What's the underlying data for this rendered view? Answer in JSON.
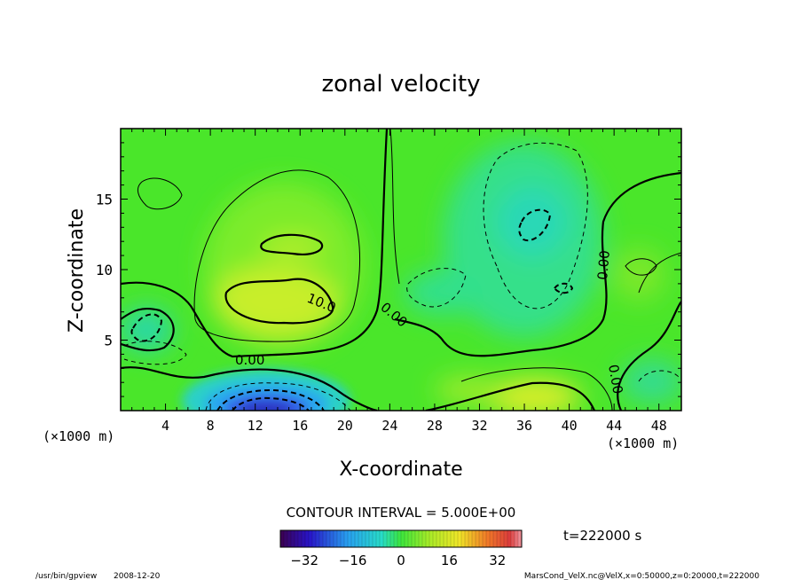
{
  "chart_data": {
    "type": "heatmap",
    "title": "zonal velocity",
    "xlabel": "X-coordinate",
    "ylabel": "Z-coordinate",
    "x_unit_left": "(×1000 m)",
    "x_unit_right": "(×1000 m)",
    "xlim": [
      0,
      50
    ],
    "ylim": [
      0,
      20
    ],
    "x_ticks": [
      4,
      8,
      12,
      16,
      20,
      24,
      28,
      32,
      36,
      40,
      44,
      48
    ],
    "y_ticks": [
      5,
      10,
      15
    ],
    "contour_interval_label": "CONTOUR INTERVAL = 5.000E+00",
    "contour_labels": [
      "0.00",
      "10.0",
      "0.00",
      "0.00",
      "0.00"
    ],
    "colorbar": {
      "range": [
        -40,
        40
      ],
      "ticks": [
        -32,
        -16,
        0,
        16,
        32
      ],
      "tick_labels": [
        "−32",
        "−16",
        "0",
        "16",
        "32"
      ]
    },
    "time_label": "t=222000 s",
    "grid": false
  },
  "footer": {
    "program": "/usr/bin/gpview",
    "date": "2008-12-20",
    "source": "MarsCond_VelX.nc@VelX,x=0:50000,z=0:20000,t=222000"
  },
  "colors": {
    "background": "#50e62a",
    "positive_peak": "#f4ee2a",
    "negative_peak": "#3040e6",
    "contour": "#000000"
  }
}
